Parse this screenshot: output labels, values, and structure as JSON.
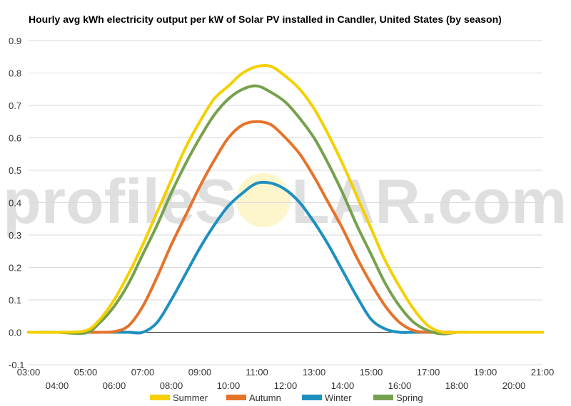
{
  "watermark": {
    "left": "profileS",
    "right": "LAR.com"
  },
  "chart_data": {
    "type": "line",
    "title": "Hourly avg kWh electricity output per kW of Solar PV installed in Candler, United States (by season)",
    "xlabel": "",
    "ylabel": "",
    "ylim": [
      -0.1,
      0.9
    ],
    "yticks": [
      "-0.1",
      "0.0",
      "0.1",
      "0.2",
      "0.3",
      "0.4",
      "0.5",
      "0.6",
      "0.7",
      "0.8",
      "0.9"
    ],
    "x_upper_ticks": [
      "03:00",
      "05:00",
      "07:00",
      "09:00",
      "11:00",
      "13:00",
      "15:00",
      "17:00",
      "19:00",
      "21:00"
    ],
    "x_lower_ticks": [
      "04:00",
      "06:00",
      "08:00",
      "10:00",
      "12:00",
      "14:00",
      "16:00",
      "18:00",
      "20:00"
    ],
    "x": [
      3,
      4,
      5,
      5.5,
      6,
      6.5,
      7,
      7.5,
      8,
      8.5,
      9,
      9.5,
      10,
      10.5,
      11,
      11.5,
      12,
      12.5,
      13,
      13.5,
      14,
      14.5,
      15,
      15.5,
      16,
      16.5,
      17,
      17.5,
      18,
      18.5,
      19,
      20,
      21
    ],
    "grid": true,
    "legend_position": "bottom",
    "series": [
      {
        "name": "Summer",
        "color": "#f5d000",
        "values": [
          0,
          0,
          0.005,
          0.04,
          0.1,
          0.18,
          0.27,
          0.37,
          0.47,
          0.57,
          0.65,
          0.72,
          0.76,
          0.8,
          0.82,
          0.82,
          0.79,
          0.75,
          0.69,
          0.61,
          0.52,
          0.42,
          0.32,
          0.22,
          0.14,
          0.07,
          0.02,
          0,
          0,
          0,
          0,
          0,
          0
        ]
      },
      {
        "name": "Autumn",
        "color": "#e6732a",
        "values": [
          0,
          0,
          0,
          0,
          0.002,
          0.02,
          0.08,
          0.17,
          0.27,
          0.36,
          0.45,
          0.53,
          0.6,
          0.64,
          0.65,
          0.64,
          0.6,
          0.55,
          0.48,
          0.4,
          0.32,
          0.23,
          0.15,
          0.08,
          0.03,
          0.005,
          0,
          0,
          0,
          0,
          0,
          0,
          0
        ]
      },
      {
        "name": "Winter",
        "color": "#1e8fc0",
        "values": [
          0,
          0,
          0,
          0,
          0,
          0,
          0,
          0.03,
          0.1,
          0.18,
          0.26,
          0.33,
          0.39,
          0.43,
          0.46,
          0.46,
          0.44,
          0.4,
          0.34,
          0.27,
          0.19,
          0.11,
          0.04,
          0.01,
          0,
          0,
          0,
          0,
          0,
          0,
          0,
          0,
          0
        ]
      },
      {
        "name": "Spring",
        "color": "#76a14e",
        "values": [
          0,
          0,
          -0.002,
          0.03,
          0.08,
          0.15,
          0.24,
          0.33,
          0.43,
          0.52,
          0.6,
          0.67,
          0.72,
          0.75,
          0.76,
          0.74,
          0.71,
          0.66,
          0.6,
          0.52,
          0.43,
          0.33,
          0.24,
          0.15,
          0.08,
          0.03,
          0.005,
          -0.005,
          0,
          0,
          0,
          0,
          0
        ]
      }
    ]
  }
}
